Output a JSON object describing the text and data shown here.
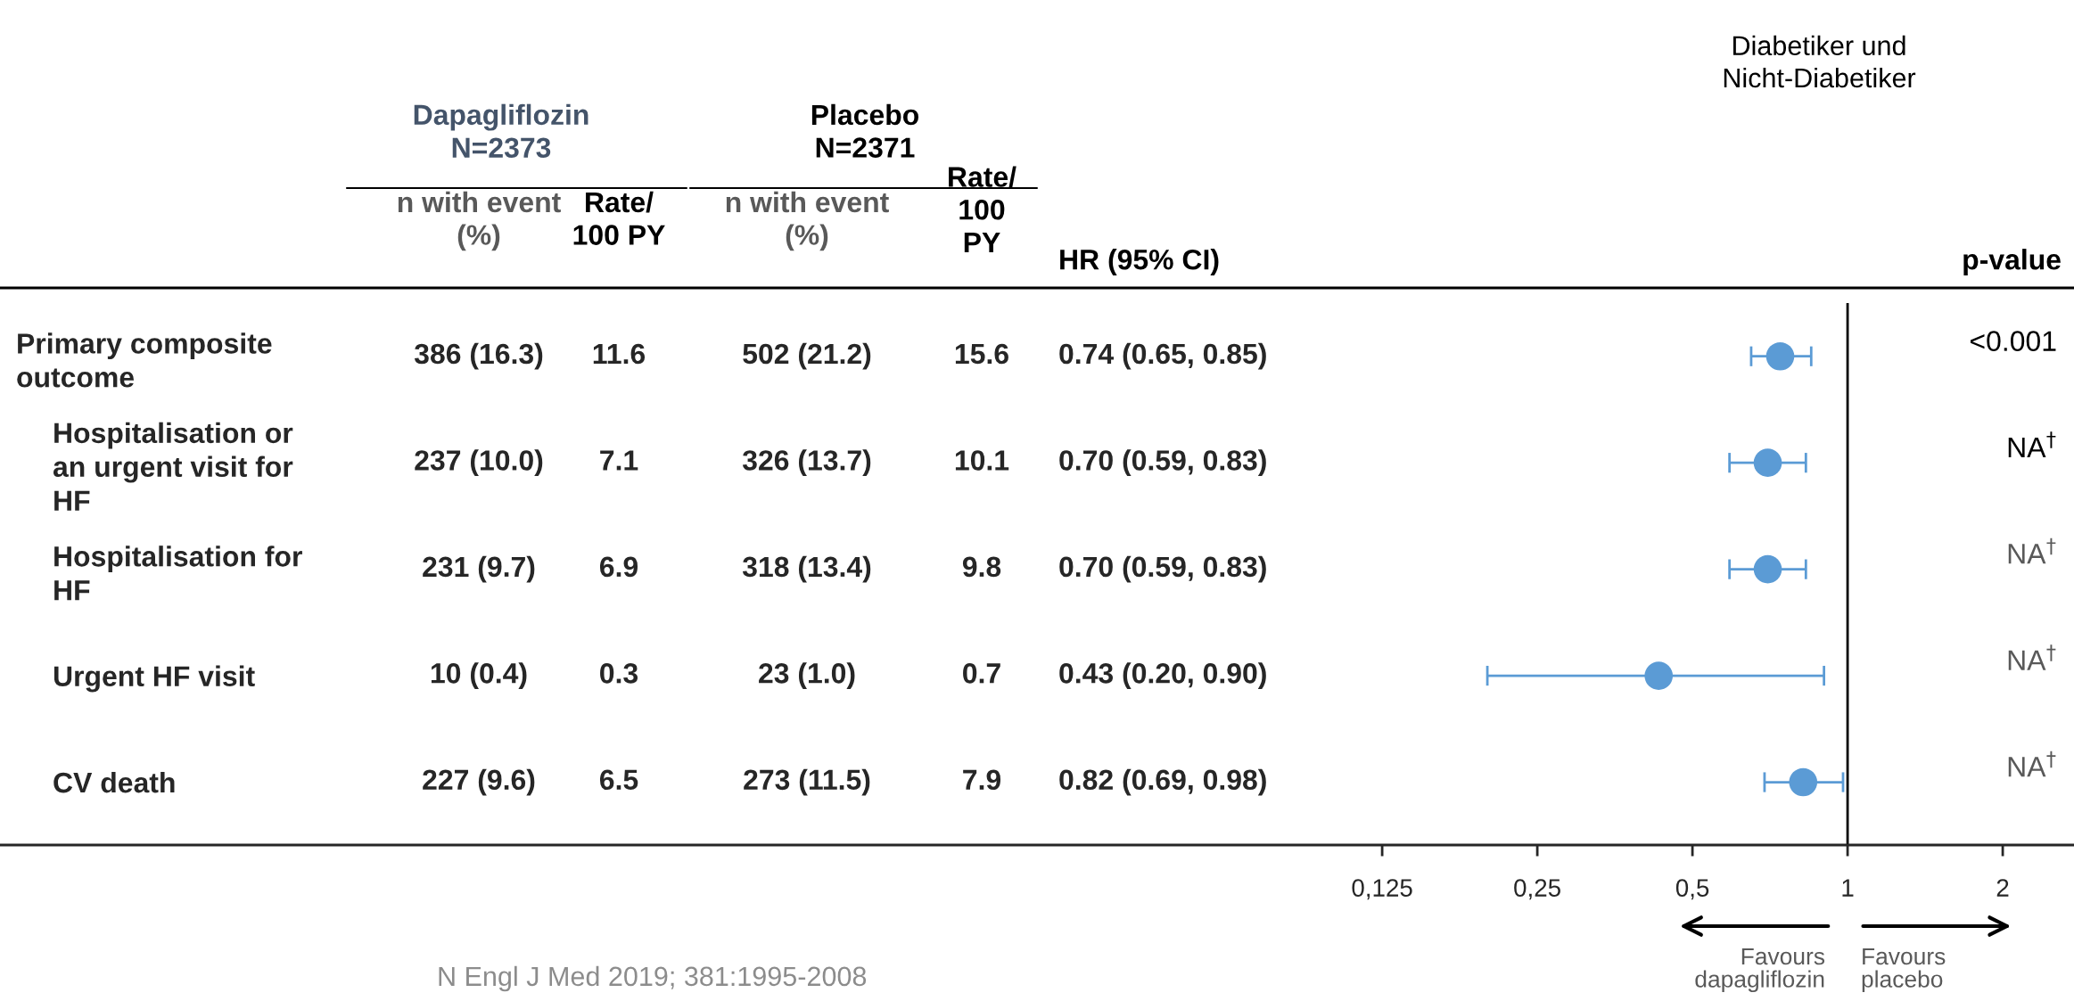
{
  "chart_data": {
    "type": "scatter",
    "orientation": "horizontal",
    "title": "Diabetiker und\nNicht-Diabetiker",
    "categories": [
      "Primary composite\noutcome",
      "Hospitalisation or\nan urgent visit for\nHF",
      "Hospitalisation for\nHF",
      "Urgent HF visit",
      "CV death"
    ],
    "color": "#5b9bd5",
    "values": [
      0.74,
      0.7,
      0.7,
      0.43,
      0.82
    ],
    "errors": [
      [
        0.65,
        0.85
      ],
      [
        0.59,
        0.83
      ],
      [
        0.59,
        0.83
      ],
      [
        0.2,
        0.9
      ],
      [
        0.69,
        0.98
      ]
    ],
    "log": "x",
    "xlim": [
      0.00026,
      2.75
    ],
    "xticks": [
      {
        "value": 0.125,
        "label": "0,125"
      },
      {
        "value": 0.25,
        "label": "0,25"
      },
      {
        "value": 0.5,
        "label": "0,5"
      },
      1,
      2
    ],
    "ref_lines": [
      {
        "axis": "x",
        "value": 1,
        "color": "#000000"
      }
    ],
    "marker": "circle",
    "grid": false,
    "legend": false,
    "annotations": [
      "Dapagliflozin\nN=2373",
      "Placebo\nN=2371",
      "n with event\n(%)",
      "Rate/\n100 PY",
      "n with event\n(%)",
      "Rate/\n100\nPY",
      "HR (95% CI)",
      "p-value",
      "386 (16.3)",
      "11.6",
      "502 (21.2)",
      "15.6",
      "0.74 (0.65, 0.85)",
      "237 (10.0)",
      "7.1",
      "326 (13.7)",
      "10.1",
      "0.70 (0.59, 0.83)",
      "231 (9.7)",
      "6.9",
      "318 (13.4)",
      "9.8",
      "0.70 (0.59, 0.83)",
      "10 (0.4)",
      "0.3",
      "23 (1.0)",
      "0.7",
      "0.43 (0.20, 0.90)",
      "227 (9.6)",
      "6.5",
      "273 (11.5)",
      "7.9",
      "0.82 (0.69, 0.98)",
      "<0.001",
      "NA$^{†}$",
      "NA$^{†}$",
      "NA$^{†}$",
      "NA$^{†}$",
      "N Engl J Med 2019; 381:1995-2008",
      "Favours\ndapagliflozin",
      "Favours\nplacebo"
    ]
  }
}
